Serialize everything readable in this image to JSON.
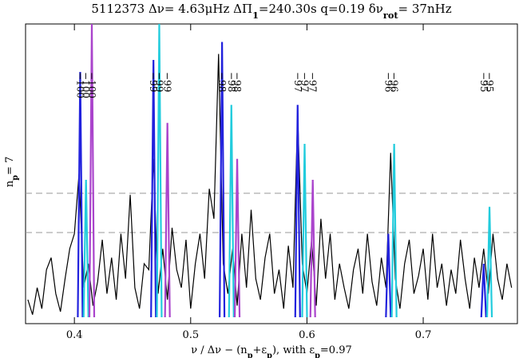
{
  "chart_data": {
    "type": "line",
    "title": [
      "5112373 Δν= 4.63μHz ΔΠ",
      "1",
      "=240.30s q=0.19 δν",
      "rot",
      "= 37nHz"
    ],
    "xlabel": [
      "ν / Δν − (n",
      "p",
      "+ε",
      "p",
      "),  with ε",
      "p",
      "=0.97"
    ],
    "ylabel": [
      "n",
      "p",
      "= 7"
    ],
    "xlim": [
      0.358,
      0.781
    ],
    "ylim": [
      0,
      1
    ],
    "xticks": [
      0.4,
      0.5,
      0.6,
      0.7
    ],
    "hlines": [
      0.435,
      0.304
    ],
    "series": [
      {
        "color": "#000000",
        "mark": "line",
        "x": [
          0.36,
          0.364,
          0.368,
          0.372,
          0.376,
          0.38,
          0.384,
          0.388,
          0.392,
          0.396,
          0.4,
          0.404,
          0.408,
          0.412,
          0.416,
          0.42,
          0.424,
          0.428,
          0.432,
          0.436,
          0.44,
          0.444,
          0.448,
          0.452,
          0.456,
          0.46,
          0.464,
          0.468,
          0.472,
          0.476,
          0.48,
          0.484,
          0.488,
          0.492,
          0.496,
          0.5,
          0.504,
          0.508,
          0.512,
          0.516,
          0.52,
          0.524,
          0.528,
          0.532,
          0.536,
          0.54,
          0.544,
          0.548,
          0.552,
          0.556,
          0.56,
          0.564,
          0.568,
          0.572,
          0.576,
          0.58,
          0.584,
          0.588,
          0.592,
          0.596,
          0.6,
          0.604,
          0.608,
          0.612,
          0.616,
          0.62,
          0.624,
          0.628,
          0.632,
          0.636,
          0.64,
          0.644,
          0.648,
          0.652,
          0.656,
          0.66,
          0.664,
          0.668,
          0.672,
          0.676,
          0.68,
          0.684,
          0.688,
          0.692,
          0.696,
          0.7,
          0.704,
          0.708,
          0.712,
          0.716,
          0.72,
          0.724,
          0.728,
          0.732,
          0.736,
          0.74,
          0.744,
          0.748,
          0.752,
          0.756,
          0.76,
          0.764,
          0.768,
          0.772,
          0.776
        ],
        "values": [
          0.08,
          0.03,
          0.12,
          0.05,
          0.18,
          0.22,
          0.1,
          0.04,
          0.15,
          0.25,
          0.3,
          0.5,
          0.12,
          0.2,
          0.06,
          0.14,
          0.28,
          0.1,
          0.22,
          0.08,
          0.3,
          0.15,
          0.43,
          0.12,
          0.05,
          0.2,
          0.18,
          0.55,
          0.1,
          0.25,
          0.08,
          0.32,
          0.18,
          0.12,
          0.28,
          0.05,
          0.2,
          0.3,
          0.15,
          0.45,
          0.35,
          0.9,
          0.2,
          0.1,
          0.25,
          0.06,
          0.3,
          0.12,
          0.38,
          0.15,
          0.08,
          0.22,
          0.3,
          0.1,
          0.18,
          0.05,
          0.26,
          0.12,
          0.7,
          0.2,
          0.1,
          0.28,
          0.06,
          0.35,
          0.15,
          0.3,
          0.08,
          0.2,
          0.12,
          0.05,
          0.18,
          0.25,
          0.1,
          0.3,
          0.14,
          0.06,
          0.22,
          0.12,
          0.57,
          0.15,
          0.05,
          0.2,
          0.28,
          0.1,
          0.16,
          0.25,
          0.08,
          0.3,
          0.12,
          0.2,
          0.06,
          0.18,
          0.1,
          0.28,
          0.15,
          0.05,
          0.22,
          0.12,
          0.25,
          0.1,
          0.3,
          0.15,
          0.08,
          0.2,
          0.12
        ]
      },
      {
        "color": "#2222dd",
        "mark": "spike",
        "x": [
          0.405,
          0.468,
          0.527,
          0.592,
          0.67,
          0.752
        ],
        "values": [
          0.84,
          0.88,
          0.94,
          0.73,
          0.3,
          0.2
        ],
        "labels": [
          "−100",
          "−99",
          "−98",
          "−97",
          "−96",
          "−95"
        ]
      },
      {
        "color": "#22ccdd",
        "mark": "spike",
        "x": [
          0.41,
          0.473,
          0.535,
          0.598,
          0.675,
          0.757
        ],
        "values": [
          0.48,
          1.0,
          0.73,
          0.6,
          0.6,
          0.39
        ],
        "labels": [
          "−100",
          "−99",
          "−98",
          "−97",
          "−96",
          "−95"
        ]
      },
      {
        "color": "#aa44cc",
        "mark": "spike",
        "x": [
          0.415,
          0.48,
          0.54,
          0.605
        ],
        "values": [
          1.0,
          0.67,
          0.55,
          0.48
        ],
        "labels": [
          "−100",
          "−99",
          "−98",
          "−97"
        ]
      }
    ]
  }
}
